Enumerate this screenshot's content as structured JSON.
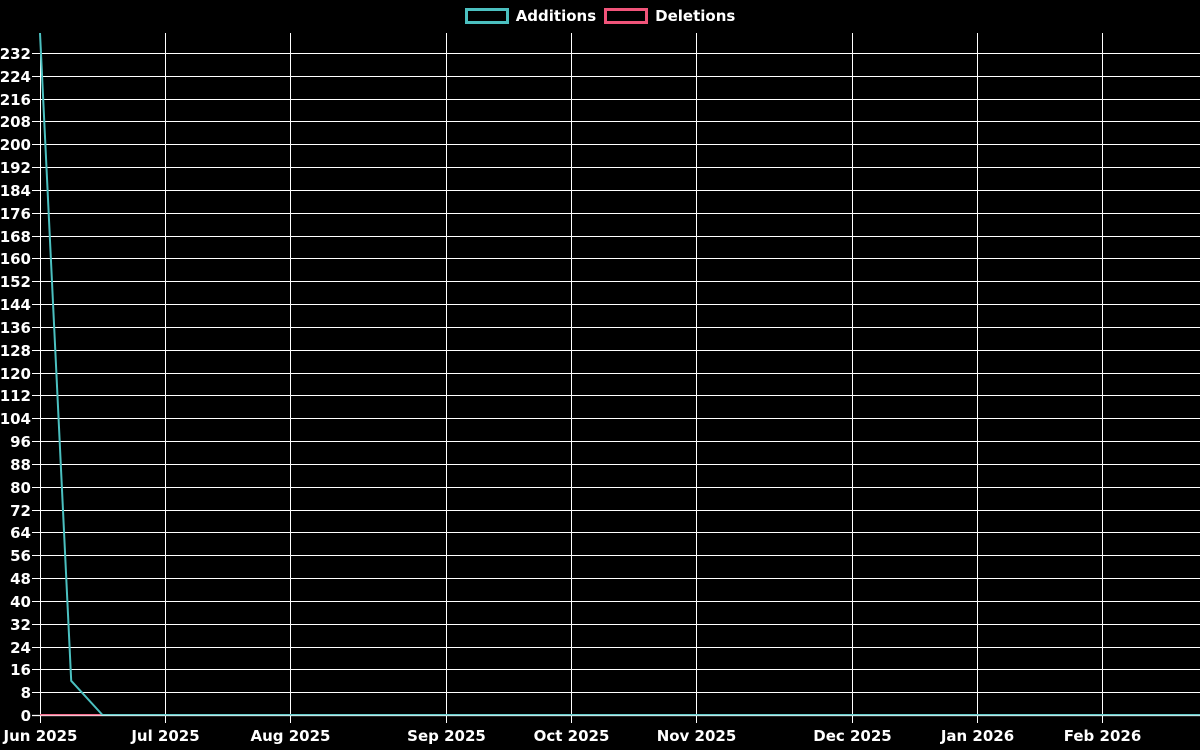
{
  "legend": {
    "position": "top",
    "items": [
      {
        "label": "Additions",
        "color": "#4bc0c0",
        "swatch_icon": "outlined-box-swatch-icon"
      },
      {
        "label": "Deletions",
        "color": "#f1547a",
        "swatch_icon": "outlined-box-swatch-icon"
      }
    ]
  },
  "chart_data": {
    "type": "line",
    "title": "",
    "background_color": "#000000",
    "grid": true,
    "grid_color": "#ffffff",
    "text_color": "#ffffff",
    "legend_position": "top",
    "x_axis": {
      "unit": "week",
      "tick_labels": [
        "Jun 2025",
        "Jul 2025",
        "Aug 2025",
        "Sep 2025",
        "Oct 2025",
        "Nov 2025",
        "Dec 2025",
        "Jan 2026",
        "Feb 2026"
      ],
      "tick_week_offsets": [
        0,
        4,
        8,
        13,
        17,
        21,
        26,
        30,
        34
      ]
    },
    "y_axis": {
      "min": 0,
      "top_value": 239,
      "tick_step": 8,
      "tick_labels": [
        0,
        8,
        16,
        24,
        32,
        40,
        48,
        56,
        64,
        72,
        80,
        88,
        96,
        104,
        112,
        120,
        128,
        136,
        144,
        152,
        160,
        168,
        176,
        184,
        192,
        200,
        208,
        216,
        224,
        232
      ]
    },
    "series": [
      {
        "name": "Additions",
        "color": "#4bc0c0",
        "weekly_values": [
          239,
          12,
          0,
          0,
          0,
          0,
          0,
          0,
          0,
          0,
          0,
          0,
          0,
          0,
          0,
          0,
          0,
          0,
          0,
          0,
          0,
          0,
          0,
          0,
          0,
          0,
          0,
          0,
          0,
          0,
          0,
          0,
          0,
          0,
          0,
          0,
          0,
          0
        ]
      },
      {
        "name": "Deletions",
        "color": "#f1547a",
        "weekly_values": [
          0,
          0,
          0,
          0,
          0,
          0,
          0,
          0,
          0,
          0,
          0,
          0,
          0,
          0,
          0,
          0,
          0,
          0,
          0,
          0,
          0,
          0,
          0,
          0,
          0,
          0,
          0,
          0,
          0,
          0,
          0,
          0,
          0,
          0,
          0,
          0,
          0,
          0
        ]
      }
    ]
  }
}
